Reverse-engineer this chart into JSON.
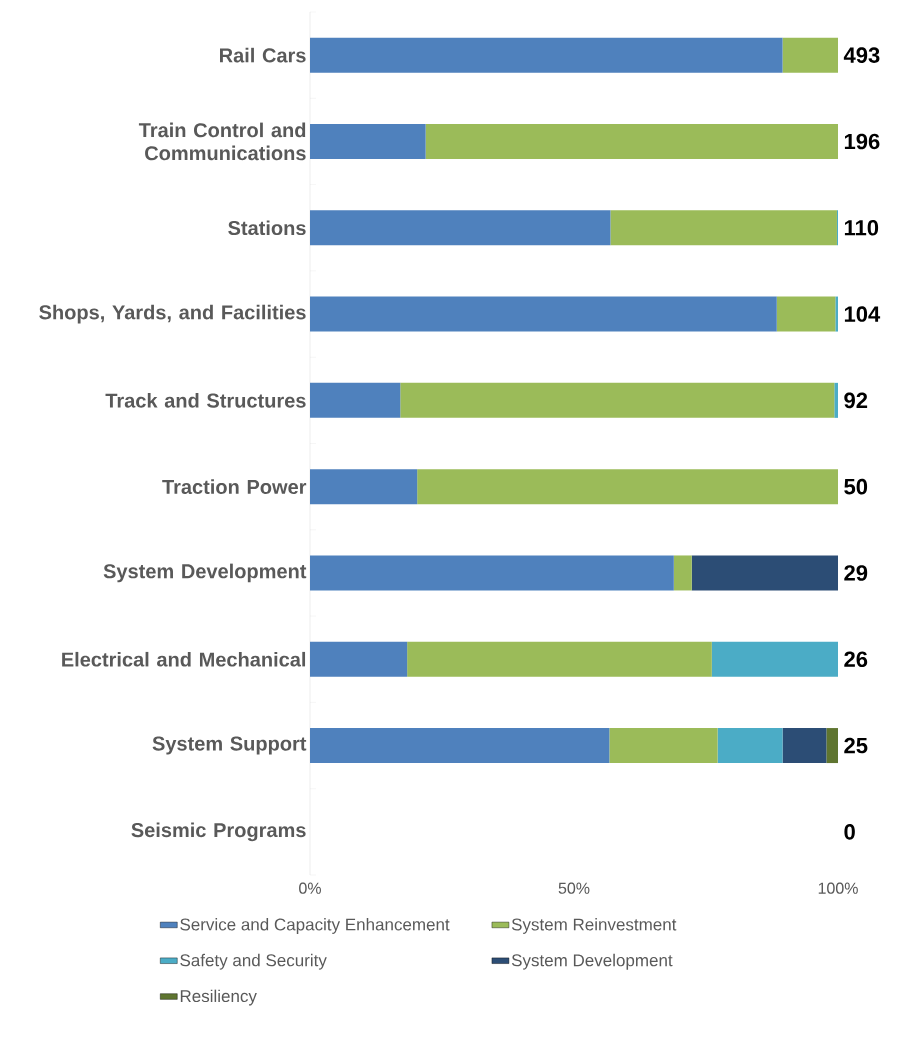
{
  "chart_data": {
    "type": "bar",
    "orientation": "horizontal",
    "stacked": true,
    "categories": [
      "Rail Cars",
      "Train Control and Communications",
      "Stations",
      "Shops, Yards, and Facilities",
      "Track and Structures",
      "Traction Power",
      "System Development",
      "Electrical and Mechanical",
      "System Support",
      "Seismic Programs"
    ],
    "series": [
      {
        "name": "Service and Capacity Enhancement",
        "color": "#4f81bd",
        "values": [
          89.5,
          21.9,
          56.9,
          88.4,
          17.1,
          20.3,
          68.9,
          18.4,
          56.7,
          0
        ]
      },
      {
        "name": "System Reinvestment",
        "color": "#9bbb59",
        "values": [
          10.5,
          78.1,
          42.9,
          11.1,
          82.2,
          79.7,
          3.4,
          57.7,
          20.5,
          0
        ]
      },
      {
        "name": "Safety and Security",
        "color": "#4bacc6",
        "values": [
          0,
          0,
          0.2,
          0.5,
          0.7,
          0,
          0,
          23.9,
          12.3,
          0
        ]
      },
      {
        "name": "System Development",
        "color": "#2c4d75",
        "values": [
          0,
          0,
          0,
          0,
          0,
          0,
          27.7,
          0,
          8.3,
          0
        ]
      },
      {
        "name": "Resiliency",
        "color": "#5f7530",
        "values": [
          0,
          0,
          0,
          0,
          0,
          0,
          0,
          0,
          2.2,
          0
        ]
      }
    ],
    "annotations": [
      "493",
      "196",
      "110",
      "104",
      "92",
      "50",
      "29",
      "26",
      "25",
      "0"
    ],
    "xlim": [
      0,
      100
    ],
    "xticks": [
      {
        "value": 0,
        "label": "0%"
      },
      {
        "value": 50,
        "label": "50%"
      },
      {
        "value": 100,
        "label": "100%"
      }
    ],
    "grid": false,
    "legend": "bottom"
  }
}
